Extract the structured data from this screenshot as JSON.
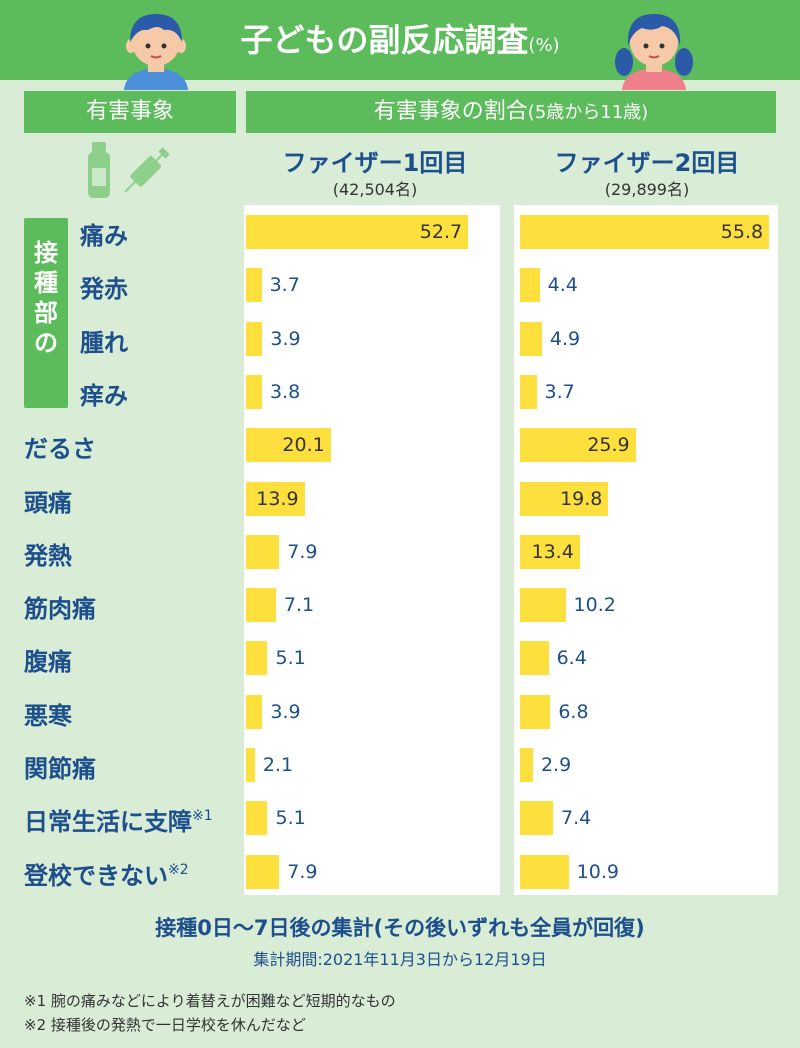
{
  "header": {
    "title": "子どもの副反応調査",
    "title_unit": "(%)",
    "col_event": "有害事象",
    "col_rate": "有害事象の割合",
    "col_rate_sub": "(5歳から11歳)"
  },
  "icons": [
    "boy-avatar-icon",
    "girl-avatar-icon",
    "vial-icon",
    "syringe-icon"
  ],
  "group_label": "接種部の",
  "chart_data": {
    "type": "bar",
    "orientation": "horizontal",
    "title": "子どもの副反応調査",
    "unit": "(%)",
    "xlim": [
      0,
      56
    ],
    "categories": [
      "痛み",
      "発赤",
      "腫れ",
      "痒み",
      "だるさ",
      "頭痛",
      "発熱",
      "筋肉痛",
      "腹痛",
      "悪寒",
      "関節痛",
      "日常生活に支障",
      "登校できない"
    ],
    "category_notes": [
      "",
      "",
      "",
      "",
      "",
      "",
      "",
      "",
      "",
      "",
      "",
      "※1",
      "※2"
    ],
    "series": [
      {
        "name": "ファイザー1回目",
        "note": "(42,504名)",
        "values": [
          52.7,
          3.7,
          3.9,
          3.8,
          20.1,
          13.9,
          7.9,
          7.1,
          5.1,
          3.9,
          2.1,
          5.1,
          7.9
        ]
      },
      {
        "name": "ファイザー2回目",
        "note": "(29,899名)",
        "values": [
          55.8,
          4.4,
          4.9,
          3.7,
          25.9,
          19.8,
          13.4,
          10.2,
          6.4,
          6.8,
          2.9,
          7.4,
          10.9
        ]
      }
    ]
  },
  "footer": {
    "main": "接種0日〜7日後の集計(その後いずれも全員が回復)",
    "period": "集計期間:2021年11月3日から12月19日",
    "note1": "※1 腕の痛みなどにより着替えが困難など短期的なもの",
    "note2": "※2 接種後の発熱で一日学校を休んだなど"
  },
  "colors": {
    "green": "#5cbb5a",
    "bg": "#d8ecd6",
    "bar": "#fddf3d",
    "text": "#1d4f8c"
  }
}
